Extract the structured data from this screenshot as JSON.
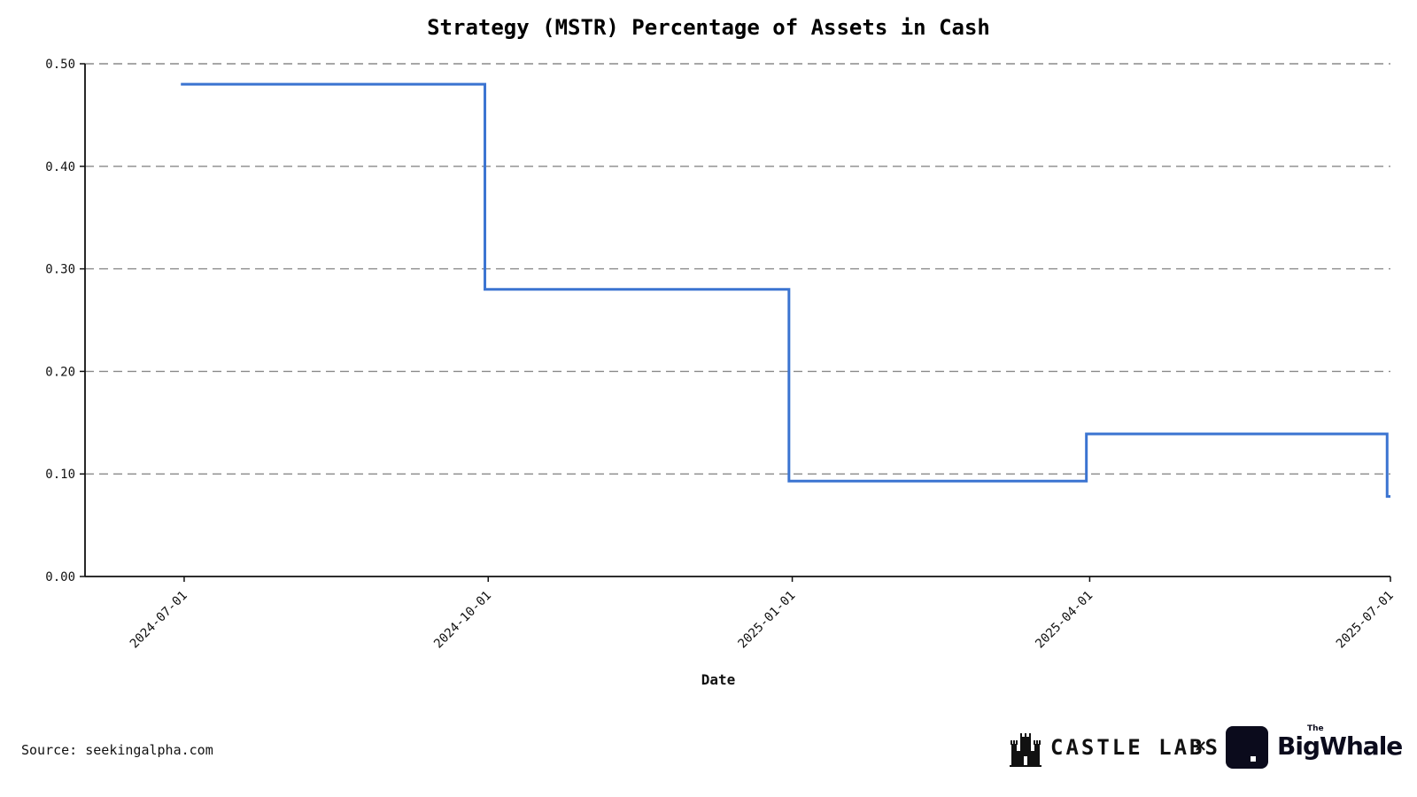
{
  "chart_data": {
    "type": "line",
    "step": "post",
    "title": "Strategy (MSTR) Percentage of Assets in Cash",
    "xlabel": "Date",
    "ylabel": "",
    "x": [
      "2024-06-30",
      "2024-09-30",
      "2024-12-31",
      "2025-03-31",
      "2025-06-30",
      "2025-07-01"
    ],
    "values": [
      0.48,
      0.28,
      0.093,
      0.139,
      0.078,
      0.078
    ],
    "xlim": [
      "2024-06-01",
      "2025-07-01"
    ],
    "ylim": [
      0,
      0.5
    ],
    "x_ticks": [
      "2024-07-01",
      "2024-10-01",
      "2025-01-01",
      "2025-04-01",
      "2025-07-01"
    ],
    "y_ticks": [
      "0.00",
      "0.10",
      "0.20",
      "0.30",
      "0.40",
      "0.50"
    ],
    "grid": "horizontal dashed",
    "line_color": "#3b74d1"
  },
  "footer": {
    "source": "Source: seekingalpha.com",
    "castle_labs": "CASTLE LABS",
    "separator": "×",
    "whale_the": "The",
    "whale_name": "BigWhale"
  }
}
